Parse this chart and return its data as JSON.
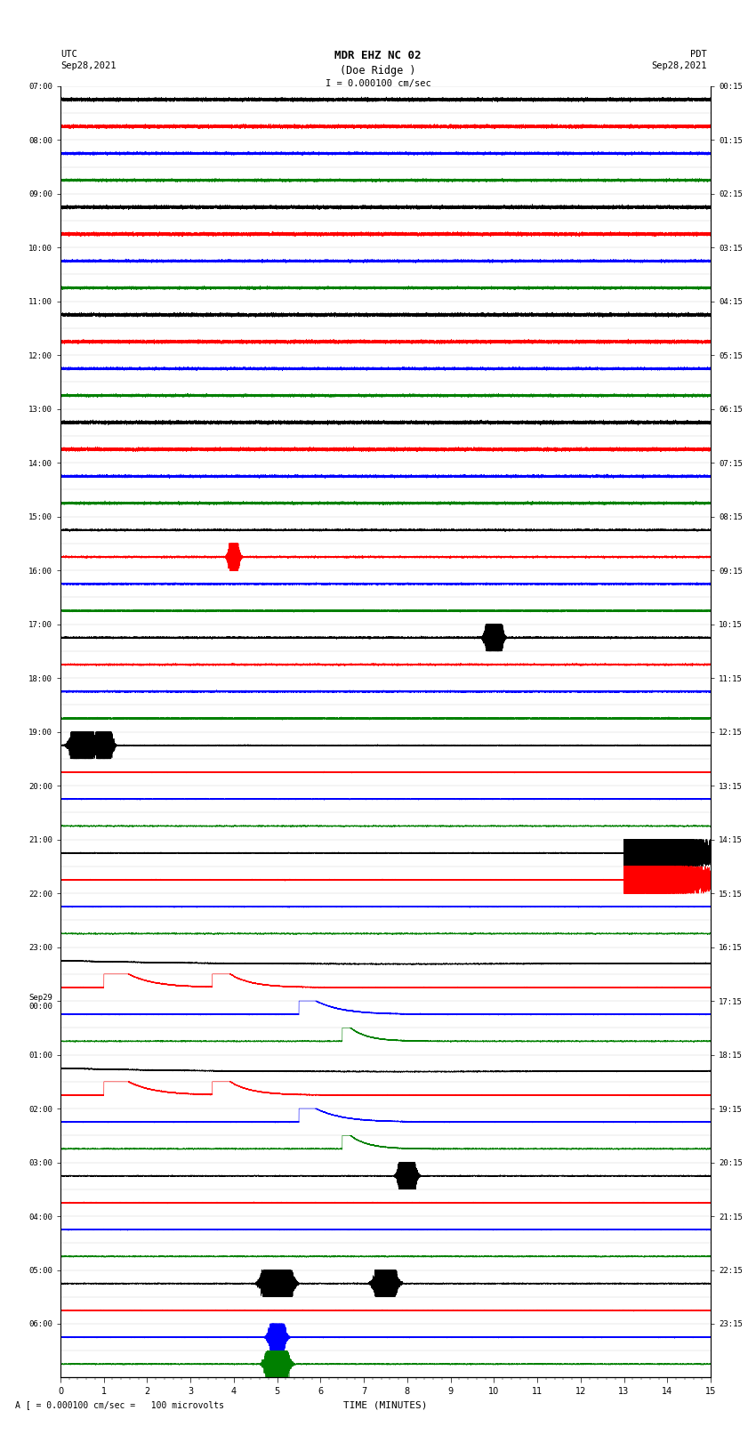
{
  "title_line1": "MDR EHZ NC 02",
  "title_line2": "(Doe Ridge )",
  "scale_label": "I = 0.000100 cm/sec",
  "footer_label": "A [ = 0.000100 cm/sec =   100 microvolts",
  "left_label_top": "UTC",
  "left_label_date": "Sep28,2021",
  "right_label_top": "PDT",
  "right_label_date": "Sep28,2021",
  "xlabel": "TIME (MINUTES)",
  "left_times_utc": [
    "07:00",
    "",
    "08:00",
    "",
    "09:00",
    "",
    "10:00",
    "",
    "11:00",
    "",
    "12:00",
    "",
    "13:00",
    "",
    "14:00",
    "",
    "15:00",
    "",
    "16:00",
    "",
    "17:00",
    "",
    "18:00",
    "",
    "19:00",
    "",
    "20:00",
    "",
    "21:00",
    "",
    "22:00",
    "",
    "23:00",
    "",
    "Sep29\n00:00",
    "",
    "01:00",
    "",
    "02:00",
    "",
    "03:00",
    "",
    "04:00",
    "",
    "05:00",
    "",
    "06:00",
    ""
  ],
  "right_times_pdt": [
    "00:15",
    "",
    "01:15",
    "",
    "02:15",
    "",
    "03:15",
    "",
    "04:15",
    "",
    "05:15",
    "",
    "06:15",
    "",
    "07:15",
    "",
    "08:15",
    "",
    "09:15",
    "",
    "10:15",
    "",
    "11:15",
    "",
    "12:15",
    "",
    "13:15",
    "",
    "14:15",
    "",
    "15:15",
    "",
    "16:15",
    "",
    "17:15",
    "",
    "18:15",
    "",
    "19:15",
    "",
    "20:15",
    "",
    "21:15",
    "",
    "22:15",
    "",
    "23:15",
    ""
  ],
  "colors": [
    "black",
    "red",
    "blue",
    "green"
  ],
  "n_rows": 48,
  "n_minutes": 15,
  "sample_rate": 100,
  "background_color": "white",
  "trace_line_color": "#aaaaaa",
  "noise_amplitude": 0.12,
  "seed": 42
}
